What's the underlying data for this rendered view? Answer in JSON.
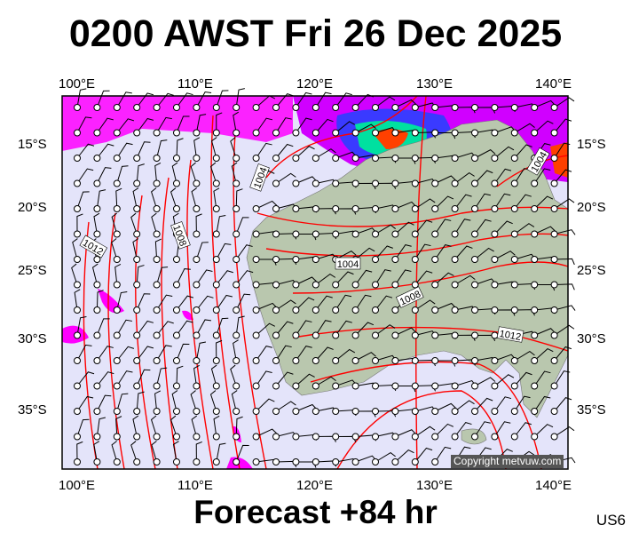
{
  "header": {
    "title": "0200 AWST Fri 26 Dec 2025"
  },
  "footer": {
    "forecast": "Forecast +84 hr",
    "region_code": "US6",
    "copyright": "Copyright metvuw.com"
  },
  "axes": {
    "lon_labels_top": [
      "100°E",
      "110°E",
      "120°E",
      "130°E",
      "140°E"
    ],
    "lon_labels_bottom": [
      "100°E",
      "110°E",
      "120°E",
      "130°E",
      "140°E"
    ],
    "lat_labels_left": [
      "15°S",
      "20°S",
      "25°S",
      "30°S",
      "35°S"
    ],
    "lat_labels_right": [
      "15°S",
      "20°S",
      "25°S",
      "30°S",
      "35°S"
    ]
  },
  "isobar_labels": [
    "1004",
    "1008",
    "1012",
    "1004",
    "1008",
    "1012",
    "1004"
  ],
  "colors": {
    "sea": "#e4e4fa",
    "land": "#b9c7ae",
    "isobar": "#ff0000",
    "rain_light": "#ff00ff",
    "rain_mid": "#2020ff",
    "rain_heavy": "#ff4000"
  }
}
